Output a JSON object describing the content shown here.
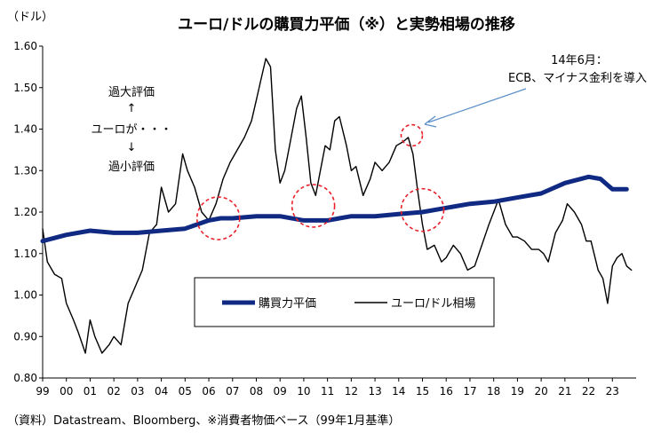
{
  "chart_data": {
    "type": "line",
    "title": "ユーロ/ドルの購買力平価（※）と実勢相場の推移",
    "ylabel": "（ドル）",
    "xlabel": "",
    "ylim": [
      0.8,
      1.6
    ],
    "y_ticks": [
      "1.60",
      "1.50",
      "1.40",
      "1.30",
      "1.20",
      "1.10",
      "1.00",
      "0.90",
      "0.80"
    ],
    "x_range": [
      1999,
      2024
    ],
    "x_tick_labels": [
      "99",
      "00",
      "01",
      "02",
      "03",
      "04",
      "05",
      "06",
      "07",
      "08",
      "09",
      "10",
      "11",
      "12",
      "13",
      "14",
      "15",
      "16",
      "17",
      "18",
      "19",
      "20",
      "21",
      "22",
      "23"
    ],
    "legend": {
      "position": "bottom-center",
      "entries": [
        "購買力平価",
        "ユーロ/ドル相場"
      ]
    },
    "series": [
      {
        "name": "購買力平価",
        "color": "#102a83",
        "x": [
          1999.0,
          2000.0,
          2001.0,
          2002.0,
          2003.0,
          2004.0,
          2005.0,
          2006.0,
          2006.5,
          2007.0,
          2008.0,
          2009.0,
          2010.0,
          2011.0,
          2012.0,
          2013.0,
          2014.0,
          2015.0,
          2016.0,
          2017.0,
          2018.0,
          2019.0,
          2020.0,
          2021.0,
          2022.0,
          2022.5,
          2023.0,
          2023.6
        ],
        "values": [
          1.13,
          1.145,
          1.155,
          1.15,
          1.15,
          1.155,
          1.16,
          1.18,
          1.185,
          1.185,
          1.19,
          1.19,
          1.18,
          1.18,
          1.19,
          1.19,
          1.195,
          1.2,
          1.21,
          1.22,
          1.225,
          1.235,
          1.245,
          1.27,
          1.285,
          1.28,
          1.255,
          1.255
        ]
      },
      {
        "name": "ユーロ/ドル相場",
        "color": "#000000",
        "x": [
          1999.0,
          1999.2,
          1999.5,
          1999.8,
          2000.0,
          2000.3,
          2000.5,
          2000.8,
          2001.0,
          2001.2,
          2001.5,
          2001.8,
          2002.0,
          2002.3,
          2002.6,
          2002.9,
          2003.2,
          2003.5,
          2003.8,
          2004.0,
          2004.3,
          2004.6,
          2004.9,
          2005.1,
          2005.4,
          2005.7,
          2006.0,
          2006.3,
          2006.6,
          2006.9,
          2007.2,
          2007.5,
          2007.8,
          2008.0,
          2008.2,
          2008.4,
          2008.6,
          2008.8,
          2009.0,
          2009.2,
          2009.4,
          2009.7,
          2009.9,
          2010.1,
          2010.3,
          2010.5,
          2010.7,
          2010.9,
          2011.1,
          2011.3,
          2011.5,
          2011.8,
          2012.0,
          2012.2,
          2012.5,
          2012.8,
          2013.0,
          2013.3,
          2013.6,
          2013.9,
          2014.2,
          2014.4,
          2014.6,
          2014.8,
          2015.0,
          2015.2,
          2015.5,
          2015.8,
          2016.0,
          2016.3,
          2016.6,
          2016.9,
          2017.2,
          2017.5,
          2017.8,
          2018.0,
          2018.2,
          2018.5,
          2018.8,
          2019.0,
          2019.3,
          2019.6,
          2019.9,
          2020.1,
          2020.3,
          2020.6,
          2020.9,
          2021.1,
          2021.4,
          2021.7,
          2021.9,
          2022.1,
          2022.4,
          2022.6,
          2022.8,
          2023.0,
          2023.2,
          2023.4,
          2023.6,
          2023.8
        ],
        "values": [
          1.16,
          1.08,
          1.05,
          1.04,
          0.98,
          0.94,
          0.91,
          0.86,
          0.94,
          0.9,
          0.86,
          0.88,
          0.9,
          0.88,
          0.98,
          1.02,
          1.06,
          1.15,
          1.17,
          1.26,
          1.2,
          1.22,
          1.34,
          1.3,
          1.26,
          1.2,
          1.18,
          1.22,
          1.28,
          1.32,
          1.35,
          1.38,
          1.42,
          1.47,
          1.52,
          1.57,
          1.55,
          1.35,
          1.27,
          1.3,
          1.36,
          1.45,
          1.48,
          1.38,
          1.27,
          1.24,
          1.3,
          1.36,
          1.35,
          1.42,
          1.43,
          1.36,
          1.3,
          1.31,
          1.24,
          1.28,
          1.32,
          1.3,
          1.32,
          1.36,
          1.37,
          1.38,
          1.34,
          1.25,
          1.17,
          1.11,
          1.12,
          1.08,
          1.09,
          1.12,
          1.1,
          1.06,
          1.07,
          1.12,
          1.17,
          1.2,
          1.23,
          1.17,
          1.14,
          1.14,
          1.13,
          1.11,
          1.11,
          1.1,
          1.08,
          1.15,
          1.18,
          1.22,
          1.2,
          1.17,
          1.13,
          1.13,
          1.06,
          1.04,
          0.98,
          1.07,
          1.09,
          1.1,
          1.07,
          1.06
        ]
      }
    ],
    "annotations": {
      "left_notes": [
        "過大評価",
        "↑",
        "ユーロが・・・",
        "↓",
        "過小評価"
      ],
      "callout_lines": [
        "14年6月：",
        "ECB、マイナス金利を導入"
      ],
      "circle_years": [
        "2006.4",
        "2010.4",
        "2014.6",
        "2015.0"
      ],
      "source": "（資料）Datastream、Bloomberg、※消費者物価ベース（99年1月基準）"
    }
  }
}
